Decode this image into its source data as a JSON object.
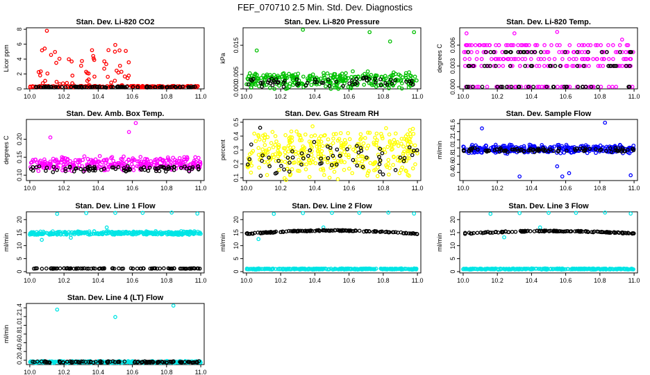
{
  "figure": {
    "title": "FEF_070710  2.5 Min. Std. Dev. Diagnostics"
  },
  "chart_data": [
    {
      "type": "scatter",
      "title": "Stan. Dev. Li-820 CO2",
      "xlabel": "",
      "ylabel": "Licor ppm",
      "xlim": [
        9.98,
        11.02
      ],
      "ylim": [
        0,
        8.2
      ],
      "xticks": [
        10.0,
        10.2,
        10.4,
        10.6,
        10.8,
        11.0
      ],
      "xtick_labels": [
        "10.0",
        "10.2",
        "10.4",
        "10.6",
        "10.8",
        "11.0"
      ],
      "yticks": [
        0,
        2,
        4,
        6,
        8
      ],
      "ytick_labels": [
        "0",
        "2",
        "4",
        "6",
        "8"
      ],
      "series": [
        {
          "name": "red",
          "color": "#ff0000",
          "mode": "spiky",
          "base": 0.3,
          "spread": 0.2,
          "peak": 7.8,
          "spike_start": 10.05,
          "spike_end": 10.6,
          "count": 210,
          "outliers": [
            [
              10.1,
              7.8
            ],
            [
              10.5,
              5.9
            ],
            [
              10.46,
              5.2
            ],
            [
              10.3,
              3.1
            ]
          ]
        },
        {
          "name": "black",
          "color": "#000000",
          "mode": "band",
          "base": 0.25,
          "spread": 0.08,
          "count": 90,
          "outliers": []
        }
      ]
    },
    {
      "type": "scatter",
      "title": "Stan. Dev. Li-820 Pressure",
      "xlabel": "",
      "ylabel": "kPa",
      "xlim": [
        9.98,
        11.02
      ],
      "ylim": [
        0,
        0.021
      ],
      "xticks": [
        10.0,
        10.2,
        10.4,
        10.6,
        10.8,
        11.0
      ],
      "xtick_labels": [
        "10.0",
        "10.2",
        "10.4",
        "10.6",
        "10.8",
        "11.0"
      ],
      "yticks": [
        0.0,
        0.005,
        0.015
      ],
      "ytick_labels": [
        "0.000",
        "0.005",
        "0.015"
      ],
      "series": [
        {
          "name": "green",
          "color": "#00c000",
          "mode": "band",
          "base": 0.003,
          "spread": 0.0035,
          "count": 300,
          "outliers": [
            [
              10.33,
              0.0203
            ],
            [
              10.98,
              0.0195
            ],
            [
              10.84,
              0.0163
            ],
            [
              10.06,
              0.0132
            ],
            [
              10.72,
              0.0195
            ]
          ]
        },
        {
          "name": "black",
          "color": "#000000",
          "mode": "band",
          "base": 0.0025,
          "spread": 0.002,
          "count": 60,
          "outliers": []
        }
      ]
    },
    {
      "type": "scatter",
      "title": "Stan. Dev. Li-820 Temp.",
      "xlabel": "",
      "ylabel": "degrees C",
      "xlim": [
        9.98,
        11.02
      ],
      "ylim": [
        -0.0003,
        0.0085
      ],
      "xticks": [
        10.0,
        10.2,
        10.4,
        10.6,
        10.8,
        11.0
      ],
      "xtick_labels": [
        "10.0",
        "10.2",
        "10.4",
        "10.6",
        "10.8",
        "11.0"
      ],
      "yticks": [
        0.0,
        0.003,
        0.006
      ],
      "ytick_labels": [
        "0.000",
        "0.003",
        "0.006"
      ],
      "series": [
        {
          "name": "magenta",
          "color": "#ff00ff",
          "mode": "levels",
          "levels": [
            0.0,
            0.003,
            0.004,
            0.005,
            0.006
          ],
          "count": 260,
          "outliers": [
            [
              10.02,
              0.0077
            ],
            [
              10.3,
              0.0077
            ],
            [
              10.55,
              0.0079
            ],
            [
              10.93,
              0.0068
            ]
          ]
        },
        {
          "name": "black",
          "color": "#000000",
          "mode": "levels",
          "levels": [
            0.0,
            0.003,
            0.005
          ],
          "count": 80,
          "outliers": []
        }
      ]
    },
    {
      "type": "scatter",
      "title": "Stan. Dev. Amb. Box Temp.",
      "xlabel": "",
      "ylabel": "degrees C",
      "xlim": [
        9.98,
        11.02
      ],
      "ylim": [
        0.085,
        0.255
      ],
      "xticks": [
        10.0,
        10.2,
        10.4,
        10.6,
        10.8,
        11.0
      ],
      "xtick_labels": [
        "10.0",
        "10.2",
        "10.4",
        "10.6",
        "10.8",
        "11.0"
      ],
      "yticks": [
        0.1,
        0.15,
        0.2
      ],
      "ytick_labels": [
        "0.10",
        "0.15",
        "0.20"
      ],
      "series": [
        {
          "name": "magenta",
          "color": "#ff00ff",
          "mode": "band",
          "base": 0.132,
          "spread": 0.022,
          "count": 300,
          "outliers": [
            [
              10.62,
              0.245
            ],
            [
              10.58,
              0.22
            ],
            [
              10.12,
              0.205
            ]
          ]
        },
        {
          "name": "black",
          "color": "#000000",
          "mode": "band",
          "base": 0.118,
          "spread": 0.01,
          "count": 80,
          "outliers": []
        }
      ]
    },
    {
      "type": "scatter",
      "title": "Stan. Dev. Gas Stream RH",
      "xlabel": "",
      "ylabel": "percent",
      "xlim": [
        9.98,
        11.02
      ],
      "ylim": [
        0.08,
        0.52
      ],
      "xticks": [
        10.0,
        10.2,
        10.4,
        10.6,
        10.8,
        11.0
      ],
      "xtick_labels": [
        "10.0",
        "10.2",
        "10.4",
        "10.6",
        "10.8",
        "11.0"
      ],
      "yticks": [
        0.1,
        0.2,
        0.3,
        0.4,
        0.5
      ],
      "ytick_labels": [
        "0.1",
        "0.2",
        "0.3",
        "0.4",
        "0.5"
      ],
      "series": [
        {
          "name": "yellow",
          "color": "#ffff00",
          "mode": "band",
          "base": 0.28,
          "spread": 0.2,
          "count": 360,
          "outliers": []
        },
        {
          "name": "black",
          "color": "#000000",
          "mode": "band",
          "base": 0.24,
          "spread": 0.14,
          "count": 60,
          "outliers": [
            [
              10.08,
              0.46
            ]
          ]
        }
      ]
    },
    {
      "type": "scatter",
      "title": "Stan. Dev. Sample Flow",
      "xlabel": "",
      "ylabel": "ml/min",
      "xlim": [
        9.98,
        11.02
      ],
      "ylim": [
        0.2,
        1.7
      ],
      "xticks": [
        10.0,
        10.2,
        10.4,
        10.6,
        10.8,
        11.0
      ],
      "xtick_labels": [
        "10.0",
        "10.2",
        "10.4",
        "10.6",
        "10.8",
        "11.0"
      ],
      "yticks": [
        0.4,
        0.6,
        0.8,
        1.0,
        1.2,
        1.4,
        1.6
      ],
      "ytick_labels": [
        "0.4",
        "0.6",
        "0.8",
        "1.0",
        "1.2",
        "1.4",
        "1.6"
      ],
      "series": [
        {
          "name": "blue",
          "color": "#0000ff",
          "mode": "band",
          "base": 0.97,
          "spread": 0.12,
          "count": 320,
          "outliers": [
            [
              10.11,
              1.48
            ],
            [
              10.83,
              1.62
            ],
            [
              10.58,
              0.3
            ],
            [
              10.33,
              0.3
            ],
            [
              10.98,
              0.33
            ],
            [
              10.62,
              0.38
            ],
            [
              10.55,
              0.55
            ]
          ]
        },
        {
          "name": "black",
          "color": "#000000",
          "mode": "band",
          "base": 0.95,
          "spread": 0.06,
          "count": 90,
          "outliers": []
        }
      ]
    },
    {
      "type": "scatter",
      "title": "Stan. Dev. Line 1 Flow",
      "xlabel": "",
      "ylabel": "ml/min",
      "xlim": [
        9.98,
        11.02
      ],
      "ylim": [
        -0.5,
        23
      ],
      "xticks": [
        10.0,
        10.2,
        10.4,
        10.6,
        10.8,
        11.0
      ],
      "xtick_labels": [
        "10.0",
        "10.2",
        "10.4",
        "10.6",
        "10.8",
        "11.0"
      ],
      "yticks": [
        0,
        5,
        10,
        15,
        20
      ],
      "ytick_labels": [
        "0",
        "5",
        "10",
        "15",
        "20"
      ],
      "series": [
        {
          "name": "cyan",
          "color": "#00e5e5",
          "mode": "band",
          "base": 14.8,
          "spread": 0.8,
          "count": 320,
          "outliers": [
            [
              10.16,
              22.2
            ],
            [
              10.33,
              22.5
            ],
            [
              10.5,
              22.6
            ],
            [
              10.66,
              22.6
            ],
            [
              10.83,
              22.7
            ],
            [
              10.98,
              22.3
            ],
            [
              10.07,
              12.2
            ],
            [
              10.24,
              13.0
            ],
            [
              10.45,
              17.0
            ]
          ]
        },
        {
          "name": "black",
          "color": "#000000",
          "mode": "band",
          "base": 1.2,
          "spread": 0.15,
          "count": 100,
          "outliers": []
        }
      ]
    },
    {
      "type": "scatter",
      "title": "Stan. Dev. Line 2 Flow",
      "xlabel": "",
      "ylabel": "ml/min",
      "xlim": [
        9.98,
        11.02
      ],
      "ylim": [
        -0.5,
        23
      ],
      "xticks": [
        10.0,
        10.2,
        10.4,
        10.6,
        10.8,
        11.0
      ],
      "xtick_labels": [
        "10.0",
        "10.2",
        "10.4",
        "10.6",
        "10.8",
        "11.0"
      ],
      "yticks": [
        0,
        5,
        10,
        15,
        20
      ],
      "ytick_labels": [
        "0",
        "5",
        "10",
        "15",
        "20"
      ],
      "series": [
        {
          "name": "cyan",
          "color": "#00e5e5",
          "mode": "band",
          "base": 1.0,
          "spread": 0.25,
          "count": 320,
          "outliers": [
            [
              10.16,
              22.2
            ],
            [
              10.33,
              22.5
            ],
            [
              10.5,
              22.6
            ],
            [
              10.66,
              22.6
            ],
            [
              10.83,
              22.7
            ],
            [
              10.98,
              22.3
            ],
            [
              10.07,
              12.5
            ],
            [
              10.45,
              17.0
            ]
          ]
        },
        {
          "name": "black",
          "color": "#000000",
          "mode": "trend",
          "base": 14.5,
          "peak_val": 15.8,
          "spread": 0.4,
          "count": 140,
          "outliers": []
        }
      ]
    },
    {
      "type": "scatter",
      "title": "Stan. Dev. Line 3 Flow",
      "xlabel": "",
      "ylabel": "ml/min",
      "xlim": [
        9.98,
        11.02
      ],
      "ylim": [
        -0.5,
        23
      ],
      "xticks": [
        10.0,
        10.2,
        10.4,
        10.6,
        10.8,
        11.0
      ],
      "xtick_labels": [
        "10.0",
        "10.2",
        "10.4",
        "10.6",
        "10.8",
        "11.0"
      ],
      "yticks": [
        0,
        5,
        10,
        15,
        20
      ],
      "ytick_labels": [
        "0",
        "5",
        "10",
        "15",
        "20"
      ],
      "series": [
        {
          "name": "cyan",
          "color": "#00e5e5",
          "mode": "band",
          "base": 1.0,
          "spread": 0.25,
          "count": 320,
          "outliers": [
            [
              10.16,
              22.2
            ],
            [
              10.33,
              22.5
            ],
            [
              10.5,
              22.6
            ],
            [
              10.66,
              22.6
            ],
            [
              10.83,
              22.7
            ],
            [
              10.98,
              22.3
            ],
            [
              10.45,
              17.0
            ],
            [
              10.24,
              13.2
            ]
          ]
        },
        {
          "name": "black",
          "color": "#000000",
          "mode": "trend",
          "base": 14.6,
          "peak_val": 15.6,
          "spread": 0.4,
          "count": 140,
          "outliers": []
        }
      ]
    },
    {
      "type": "scatter",
      "title": "Stan. Dev. Line 4 (LT) Flow",
      "xlabel": "",
      "ylabel": "ml/min",
      "xlim": [
        9.98,
        11.02
      ],
      "ylim": [
        0.1,
        1.5
      ],
      "xticks": [
        10.0,
        10.2,
        10.4,
        10.6,
        10.8,
        11.0
      ],
      "xtick_labels": [
        "10.0",
        "10.2",
        "10.4",
        "10.6",
        "10.8",
        "11.0"
      ],
      "yticks": [
        0.2,
        0.4,
        0.6,
        0.8,
        1.0,
        1.2,
        1.4
      ],
      "ytick_labels": [
        "0.2",
        "0.4",
        "0.6",
        "0.8",
        "1.0",
        "1.2",
        "1.4"
      ],
      "series": [
        {
          "name": "cyan",
          "color": "#00e5e5",
          "mode": "band",
          "base": 0.16,
          "spread": 0.025,
          "count": 320,
          "outliers": [
            [
              10.16,
              1.36
            ],
            [
              10.5,
              1.19
            ],
            [
              10.84,
              1.45
            ]
          ]
        },
        {
          "name": "black",
          "color": "#000000",
          "mode": "band",
          "base": 0.16,
          "spread": 0.02,
          "count": 110,
          "outliers": []
        }
      ]
    }
  ]
}
